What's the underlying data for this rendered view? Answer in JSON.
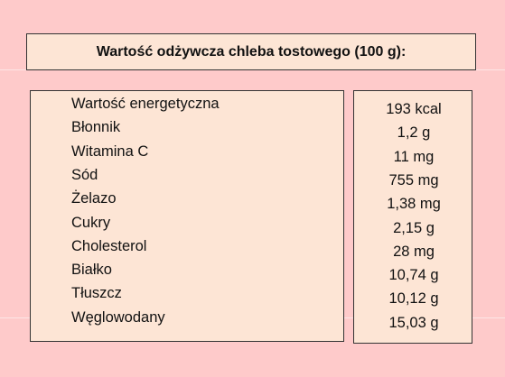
{
  "header": {
    "title": "Wartość odżywcza chleba tostowego (100 g):"
  },
  "table": {
    "rows": [
      [
        "Wartość energetyczna",
        "193 kcal"
      ],
      [
        "Błonnik",
        "1,2 g"
      ],
      [
        "Witamina C",
        "11 mg"
      ],
      [
        "Sód",
        "755 mg"
      ],
      [
        "Żelazo",
        "1,38 mg"
      ],
      [
        "Cukry",
        "2,15 g"
      ],
      [
        "Cholesterol",
        "28 mg"
      ],
      [
        "Białko",
        "10,74 g"
      ],
      [
        "Tłuszcz",
        "10,12 g"
      ],
      [
        "Węglowodany",
        "15,03 g"
      ]
    ]
  }
}
